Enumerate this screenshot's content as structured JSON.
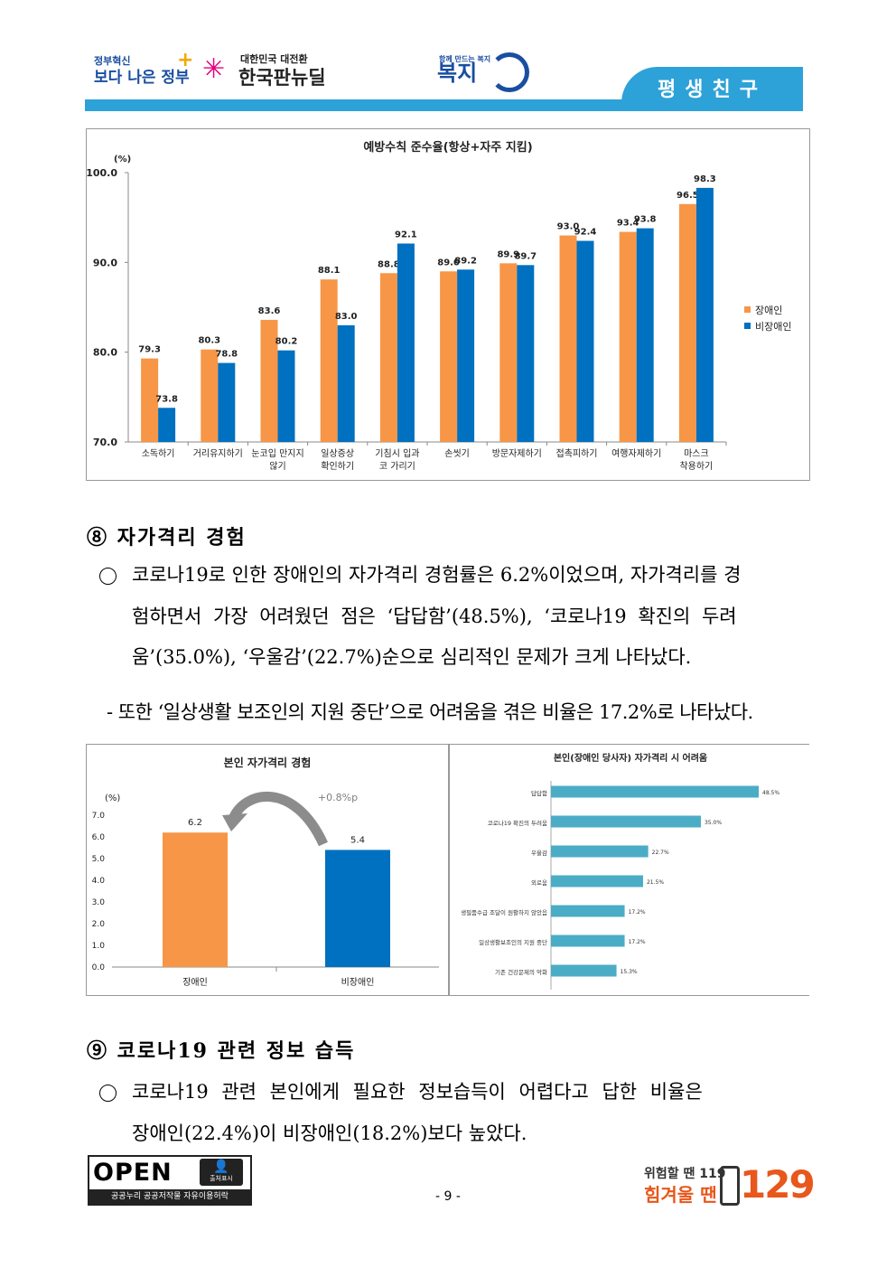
{
  "header": {
    "logo1_small": "정부혁신",
    "logo1_big": "보다 나은 정부",
    "logo2_small": "대한민국 대전환",
    "logo2_big": "한국판뉴딜",
    "logo3_small": "함께 만드는 복지",
    "logo3_big": "복지",
    "tab": "평생친구"
  },
  "chart1": {
    "title": "예방수칙 준수율(항상+자주 지킴)",
    "unit": "(%)",
    "legend": [
      "장애인",
      "비장애인"
    ],
    "colors": {
      "disabled": "#f79646",
      "non_disabled": "#0070c0"
    }
  },
  "chart_data": [
    {
      "type": "bar",
      "title": "예방수칙 준수율(항상+자주 지킴)",
      "ylabel": "(%)",
      "ylim": [
        70,
        100
      ],
      "yticks": [
        "70.0",
        "80.0",
        "90.0",
        "100.0"
      ],
      "categories": [
        "소독하기",
        "거리유지하기",
        "눈코입 만지지 않기",
        "일상증상 확인하기",
        "기침시 입과 코 가리기",
        "손씻기",
        "방문자제하기",
        "접촉피하기",
        "여행자제하기",
        "마스크 착용하기"
      ],
      "series": [
        {
          "name": "장애인",
          "values": [
            79.3,
            80.3,
            83.6,
            88.1,
            88.8,
            89.0,
            89.9,
            93.0,
            93.4,
            96.5
          ]
        },
        {
          "name": "비장애인",
          "values": [
            73.8,
            78.8,
            80.2,
            83.0,
            92.1,
            89.2,
            89.7,
            92.4,
            93.8,
            98.3
          ]
        }
      ]
    },
    {
      "type": "bar",
      "title": "본인 자가격리 경험",
      "ylabel": "(%)",
      "ylim": [
        0,
        7
      ],
      "yticks": [
        "0.0",
        "1.0",
        "2.0",
        "3.0",
        "4.0",
        "5.0",
        "6.0",
        "7.0"
      ],
      "categories": [
        "장애인",
        "비장애인"
      ],
      "values": [
        6.2,
        5.4
      ],
      "annotation": "+0.8%p"
    },
    {
      "type": "bar",
      "orientation": "horizontal",
      "title": "본인(장애인 당사자) 자가격리 시 어려움",
      "categories": [
        "답답함",
        "코로나19 확진의 두려움",
        "우울감",
        "외로움",
        "생필품수급 조달이 원활하지 않았음",
        "일상생활보조인의 지원 중단",
        "기존 건강문제의 악화"
      ],
      "values": [
        48.5,
        35.0,
        22.7,
        21.5,
        17.2,
        17.2,
        15.3
      ],
      "value_labels": [
        "48.5%",
        "35.0%",
        "22.7%",
        "21.5%",
        "17.2%",
        "17.2%",
        "15.3%"
      ]
    }
  ],
  "section8": {
    "title": "⑧ 자가격리 경험",
    "line1": "코로나19로 인한 장애인의 자가격리 경험률은 6.2%이었으며, 자가격리를 경",
    "line2": "험하면서 가장 어려웠던 점은 ‘답답함’(48.5%), ‘코로나19 확진의 두려",
    "line3": "움’(35.0%), ‘우울감’(22.7%)순으로 심리적인 문제가 크게 나타났다.",
    "sub": "- 또한 ‘일상생활 보조인의 지원 중단’으로 어려움을 겪은 비율은 17.2%로 나타났다."
  },
  "section9": {
    "title": "⑨ 코로나19 관련 정보 습득",
    "line1": "코로나19 관련 본인에게 필요한 정보습득이 어렵다고 답한 비율은",
    "line2": "장애인(22.4%)이 비장애인(18.2%)보다 높았다."
  },
  "footer": {
    "open_text": "OPEN",
    "open_badge": "출처표시",
    "open_caption": "공공누리  공공저작물 자유이용허락",
    "page": "- 9 -",
    "hotline_small": "위험할 땐 119",
    "hotline_big": "힘겨울 땐",
    "hotline_num": "129"
  }
}
